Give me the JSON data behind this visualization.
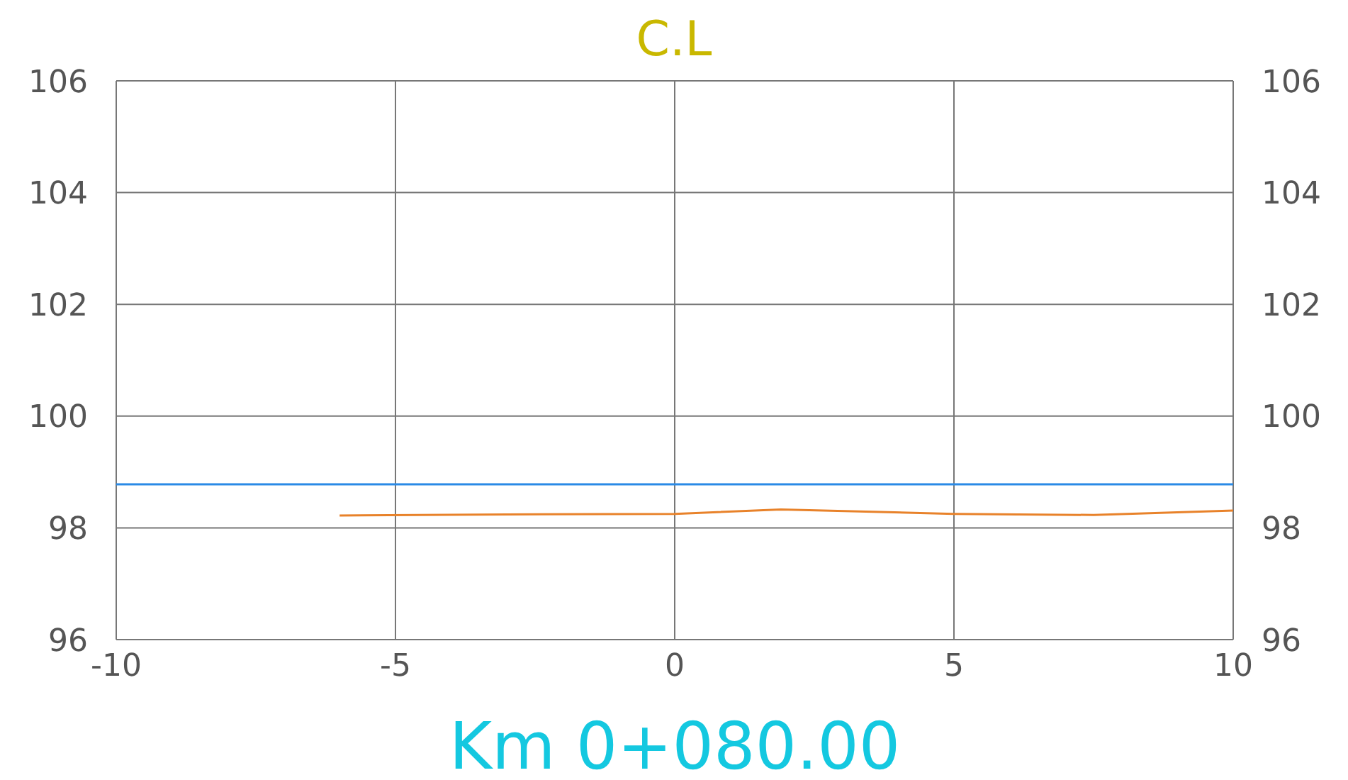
{
  "chart_data": {
    "type": "line",
    "title": "C.L",
    "xlabel": "Km 0+080.00",
    "xlim": [
      -10,
      10
    ],
    "xticks": [
      -10,
      -5,
      0,
      5,
      10
    ],
    "ylim": [
      96,
      106
    ],
    "yticks": [
      96,
      98,
      100,
      102,
      104,
      106
    ],
    "y2lim": [
      96,
      106
    ],
    "y2ticks": [
      96,
      98,
      100,
      102,
      104,
      106
    ],
    "grid": true,
    "marker": "none",
    "line_style": "solid",
    "series": [
      {
        "color": "#2a8ae6",
        "x": [
          -10,
          10
        ],
        "values": [
          98.78,
          98.78
        ]
      },
      {
        "color": "#e8822a",
        "x": [
          -6,
          -3,
          0,
          1.9,
          5,
          7.5,
          10
        ],
        "values": [
          98.22,
          98.24,
          98.25,
          98.33,
          98.25,
          98.23,
          98.31
        ]
      }
    ]
  }
}
